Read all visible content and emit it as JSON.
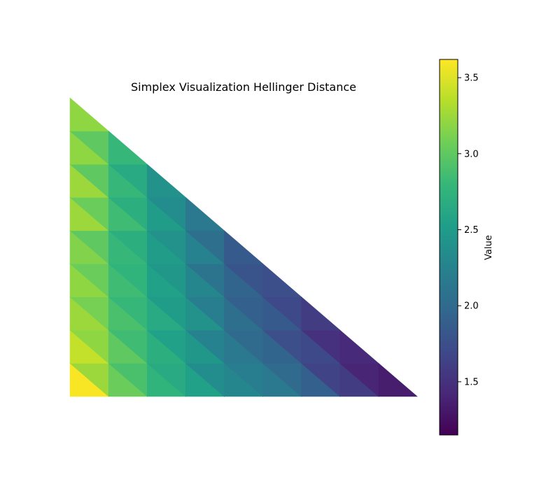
{
  "chart_data": {
    "type": "heatmap",
    "title": "Simplex Visualization Hellinger Distance",
    "grid": false,
    "legend": "none",
    "colorbar": {
      "label": "Value",
      "range": [
        1.15,
        3.62
      ],
      "ticks": [
        1.5,
        2.0,
        2.5,
        3.0,
        3.5
      ],
      "tick_labels": [
        "1.5",
        "2.0",
        "2.5",
        "3.0",
        "3.5"
      ],
      "placement": "right"
    },
    "colormap": [
      "#440154",
      "#482878",
      "#3e4989",
      "#31688e",
      "#26828e",
      "#1f9e89",
      "#35b779",
      "#6ece58",
      "#b5de2b",
      "#fde725"
    ],
    "grid_size": 9,
    "cells": [
      [
        [
          3.6,
          3.25
        ],
        [
          3.05,
          2.9
        ],
        [
          2.75,
          2.65
        ],
        [
          2.55,
          2.35
        ],
        [
          2.3,
          2.2
        ],
        [
          2.15,
          2.0
        ],
        [
          1.9,
          1.65
        ],
        [
          1.6,
          1.4
        ],
        [
          1.35,
          1.15
        ]
      ],
      [
        [
          3.4,
          3.2
        ],
        [
          3.0,
          2.85
        ],
        [
          2.7,
          2.55
        ],
        [
          2.45,
          2.25
        ],
        [
          2.15,
          2.0
        ],
        [
          1.95,
          1.75
        ],
        [
          1.7,
          1.5
        ],
        [
          1.45,
          1.25
        ]
      ],
      [
        [
          3.25,
          3.1
        ],
        [
          2.9,
          2.8
        ],
        [
          2.65,
          2.5
        ],
        [
          2.4,
          2.2
        ],
        [
          2.05,
          1.9
        ],
        [
          1.85,
          1.7
        ],
        [
          1.6,
          1.4
        ]
      ],
      [
        [
          3.2,
          3.05
        ],
        [
          2.85,
          2.75
        ],
        [
          2.55,
          2.45
        ],
        [
          2.3,
          2.1
        ],
        [
          1.95,
          1.8
        ],
        [
          1.75,
          1.6
        ]
      ],
      [
        [
          3.15,
          3.0
        ],
        [
          2.8,
          2.7
        ],
        [
          2.5,
          2.4
        ],
        [
          2.25,
          2.05
        ],
        [
          1.85,
          1.7
        ]
      ],
      [
        [
          3.25,
          3.05
        ],
        [
          2.85,
          2.7
        ],
        [
          2.5,
          2.35
        ],
        [
          2.15,
          2.05
        ]
      ],
      [
        [
          3.25,
          3.0
        ],
        [
          2.8,
          2.65
        ],
        [
          2.4,
          2.25
        ]
      ],
      [
        [
          3.2,
          3.0
        ],
        [
          2.8,
          2.65
        ]
      ],
      [
        [
          3.2,
          3.0
        ]
      ]
    ]
  }
}
